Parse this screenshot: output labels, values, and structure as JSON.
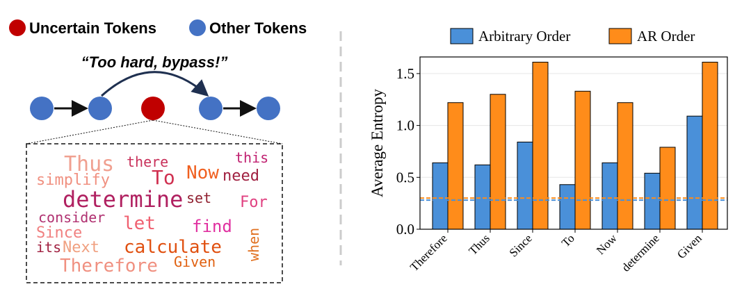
{
  "chart_data": {
    "type": "bar",
    "y_label": "Average Entropy",
    "categories": [
      "Therefore",
      "Thus",
      "Since",
      "To",
      "Now",
      "determine",
      "Given"
    ],
    "series": [
      {
        "name": "Arbitrary Order",
        "color": "#4a90d9",
        "values": [
          0.64,
          0.62,
          0.84,
          0.43,
          0.64,
          0.54,
          1.09
        ]
      },
      {
        "name": "AR Order",
        "color": "#ff8c1a",
        "values": [
          1.22,
          1.3,
          1.61,
          1.33,
          1.22,
          0.79,
          1.61
        ]
      }
    ],
    "hlines": [
      {
        "value": 0.3,
        "color": "#ff8c1a"
      },
      {
        "value": 0.28,
        "color": "#4a90d9"
      }
    ],
    "ylim": [
      0,
      1.66
    ],
    "yticks": [
      {
        "value": 0,
        "label": "0.0"
      },
      0.5,
      {
        "value": 1,
        "label": "1.0"
      },
      1.5
    ],
    "grid": true,
    "legend": "top"
  },
  "diagram": {
    "legend": [
      {
        "label": "Uncertain Tokens",
        "color": "#c00000"
      },
      {
        "label": "Other Tokens",
        "color": "#4472c4"
      }
    ],
    "quote": "“Too hard, bypass!”",
    "words": [
      {
        "text": "Thus",
        "color": "#f0a090"
      },
      {
        "text": "there",
        "color": "#c8305a"
      },
      {
        "text": "this",
        "color": "#c02070"
      },
      {
        "text": "simplify",
        "color": "#f09080"
      },
      {
        "text": "To",
        "color": "#d03050"
      },
      {
        "text": "Now",
        "color": "#f06020"
      },
      {
        "text": "need",
        "color": "#a02040"
      },
      {
        "text": "determine",
        "color": "#b02060"
      },
      {
        "text": "set",
        "color": "#902030"
      },
      {
        "text": "For",
        "color": "#e04080"
      },
      {
        "text": "consider",
        "color": "#b03070"
      },
      {
        "text": "let",
        "color": "#f06070"
      },
      {
        "text": "find",
        "color": "#e030a0"
      },
      {
        "text": "when",
        "color": "#e07020"
      },
      {
        "text": "Since",
        "color": "#f08080"
      },
      {
        "text": "its",
        "color": "#a02040"
      },
      {
        "text": "Next",
        "color": "#f0a080"
      },
      {
        "text": "calculate",
        "color": "#e05010"
      },
      {
        "text": "Therefore",
        "color": "#f09080"
      },
      {
        "text": "Given",
        "color": "#e06010"
      }
    ]
  }
}
